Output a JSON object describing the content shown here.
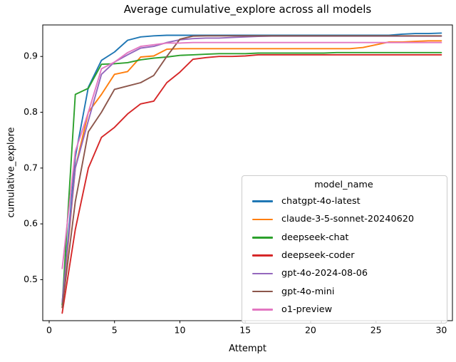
{
  "chart_data": {
    "type": "line",
    "title": "Average cumulative_explore across all models",
    "xlabel": "Attempt",
    "ylabel": "cumulative_explore",
    "xlim": [
      -0.49,
      30.85
    ],
    "ylim": [
      0.4265,
      0.9565
    ],
    "xticks": [
      0,
      5,
      10,
      15,
      20,
      25,
      30
    ],
    "yticks": [
      0.5,
      0.6,
      0.7,
      0.8,
      0.9
    ],
    "grid": false,
    "legend": {
      "title": "model_name",
      "position": "lower-right-inside"
    },
    "x_values": [
      1,
      2,
      3,
      4,
      5,
      6,
      7,
      8,
      9,
      10,
      11,
      12,
      13,
      14,
      15,
      16,
      17,
      18,
      19,
      20,
      21,
      22,
      23,
      24,
      25,
      26,
      27,
      28,
      29,
      30
    ],
    "series": [
      {
        "name": "chatgpt-4o-latest",
        "color": "#1f77b4",
        "values": [
          0.455,
          0.72,
          0.845,
          0.893,
          0.908,
          0.929,
          0.935,
          0.937,
          0.938,
          0.938,
          0.938,
          0.938,
          0.938,
          0.938,
          0.938,
          0.938,
          0.938,
          0.938,
          0.938,
          0.938,
          0.938,
          0.938,
          0.938,
          0.938,
          0.938,
          0.938,
          0.94,
          0.941,
          0.941,
          0.942
        ]
      },
      {
        "name": "claude-3-5-sonnet-20240620",
        "color": "#ff7f0e",
        "values": [
          0.45,
          0.7,
          0.8,
          0.832,
          0.868,
          0.873,
          0.899,
          0.901,
          0.913,
          0.914,
          0.914,
          0.914,
          0.914,
          0.914,
          0.914,
          0.914,
          0.914,
          0.914,
          0.914,
          0.914,
          0.914,
          0.914,
          0.914,
          0.916,
          0.921,
          0.926,
          0.926,
          0.927,
          0.928,
          0.928
        ]
      },
      {
        "name": "deepseek-chat",
        "color": "#2ca02c",
        "values": [
          0.455,
          0.832,
          0.843,
          0.886,
          0.887,
          0.889,
          0.894,
          0.897,
          0.899,
          0.902,
          0.903,
          0.904,
          0.905,
          0.905,
          0.905,
          0.906,
          0.906,
          0.906,
          0.906,
          0.906,
          0.906,
          0.907,
          0.907,
          0.907,
          0.907,
          0.907,
          0.907,
          0.907,
          0.907,
          0.907
        ]
      },
      {
        "name": "deepseek-coder",
        "color": "#d62728",
        "values": [
          0.44,
          0.59,
          0.7,
          0.755,
          0.773,
          0.797,
          0.815,
          0.82,
          0.853,
          0.872,
          0.895,
          0.898,
          0.9,
          0.9,
          0.901,
          0.903,
          0.903,
          0.903,
          0.903,
          0.903,
          0.903,
          0.903,
          0.903,
          0.903,
          0.903,
          0.903,
          0.903,
          0.903,
          0.903,
          0.903
        ]
      },
      {
        "name": "gpt-4o-2024-08-06",
        "color": "#9467bd",
        "values": [
          0.46,
          0.7,
          0.785,
          0.868,
          0.89,
          0.903,
          0.915,
          0.918,
          0.925,
          0.93,
          0.932,
          0.933,
          0.933,
          0.934,
          0.935,
          0.936,
          0.9365,
          0.9365,
          0.9365,
          0.9365,
          0.9365,
          0.9365,
          0.9365,
          0.9365,
          0.9365,
          0.9365,
          0.9365,
          0.9365,
          0.9365,
          0.9365
        ]
      },
      {
        "name": "gpt-4o-mini",
        "color": "#8c564b",
        "values": [
          0.45,
          0.64,
          0.765,
          0.8,
          0.841,
          0.847,
          0.853,
          0.866,
          0.9,
          0.931,
          0.9365,
          0.937,
          0.937,
          0.937,
          0.937,
          0.937,
          0.937,
          0.937,
          0.937,
          0.937,
          0.937,
          0.937,
          0.937,
          0.937,
          0.937,
          0.937,
          0.937,
          0.937,
          0.937,
          0.937
        ]
      },
      {
        "name": "o1-preview",
        "color": "#e377c2",
        "values": [
          0.52,
          0.73,
          0.8,
          0.878,
          0.89,
          0.907,
          0.918,
          0.921,
          0.924,
          0.924,
          0.925,
          0.925,
          0.925,
          0.925,
          0.925,
          0.925,
          0.925,
          0.925,
          0.925,
          0.925,
          0.925,
          0.925,
          0.925,
          0.925,
          0.925,
          0.925,
          0.925,
          0.925,
          0.925,
          0.925
        ]
      }
    ]
  }
}
